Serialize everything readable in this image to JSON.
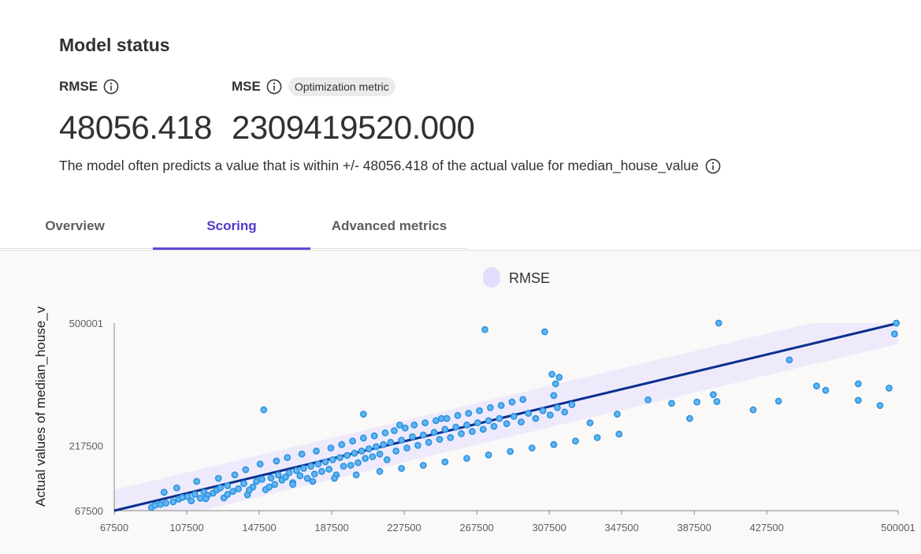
{
  "status": {
    "title": "Model status",
    "rmse": {
      "name": "RMSE",
      "value": "48056.418"
    },
    "mse": {
      "name": "MSE",
      "badge": "Optimization metric",
      "value": "2309419520.000"
    },
    "description": "The model often predicts a value that is within +/- 48056.418 of the actual value for median_house_value"
  },
  "tabs": [
    {
      "label": "Overview",
      "selected": false
    },
    {
      "label": "Scoring",
      "selected": true
    },
    {
      "label": "Advanced metrics",
      "selected": false
    }
  ],
  "icons": {
    "info": "info-icon"
  },
  "colors": {
    "accent": "#5b4ad6",
    "point": "#2b93df",
    "line": "#0b2f8f",
    "band": "#ece8fb"
  },
  "chart_data": {
    "type": "scatter",
    "legend": [
      "RMSE"
    ],
    "legend_position": "top-center",
    "ylabel": "Actual values of median_house_v",
    "xlabel": "",
    "xlim": [
      67500,
      500001
    ],
    "ylim": [
      67500,
      500001
    ],
    "x_ticks": [
      "67500",
      "107500",
      "147500",
      "187500",
      "227500",
      "267500",
      "307500",
      "347500",
      "387500",
      "427500",
      "500001"
    ],
    "y_ticks": [
      "67500",
      "217500",
      "500001"
    ],
    "ideal_line": [
      [
        67500,
        67500
      ],
      [
        500001,
        500001
      ]
    ],
    "rmse_band": 48056.418,
    "points": [
      [
        88000,
        75000
      ],
      [
        90000,
        80000
      ],
      [
        93000,
        82000
      ],
      [
        96000,
        85000
      ],
      [
        100000,
        88000
      ],
      [
        103000,
        94000
      ],
      [
        105000,
        98000
      ],
      [
        108000,
        100000
      ],
      [
        110000,
        90000
      ],
      [
        112000,
        105000
      ],
      [
        115000,
        96000
      ],
      [
        117000,
        110000
      ],
      [
        119000,
        103000
      ],
      [
        122000,
        108000
      ],
      [
        124000,
        115000
      ],
      [
        126000,
        120000
      ],
      [
        128000,
        97000
      ],
      [
        130000,
        125000
      ],
      [
        133000,
        112000
      ],
      [
        136000,
        118000
      ],
      [
        139000,
        130000
      ],
      [
        141000,
        104000
      ],
      [
        144000,
        122000
      ],
      [
        146000,
        135000
      ],
      [
        149000,
        140000
      ],
      [
        151000,
        116000
      ],
      [
        154000,
        143000
      ],
      [
        156000,
        128000
      ],
      [
        158000,
        150000
      ],
      [
        160000,
        138000
      ],
      [
        162000,
        145000
      ],
      [
        164000,
        155000
      ],
      [
        166000,
        132000
      ],
      [
        168000,
        160000
      ],
      [
        170000,
        148000
      ],
      [
        172000,
        165000
      ],
      [
        174000,
        142000
      ],
      [
        176000,
        170000
      ],
      [
        178000,
        152000
      ],
      [
        180000,
        175000
      ],
      [
        182000,
        158000
      ],
      [
        184000,
        180000
      ],
      [
        186000,
        163000
      ],
      [
        188000,
        185000
      ],
      [
        190000,
        150000
      ],
      [
        192000,
        190000
      ],
      [
        194000,
        170000
      ],
      [
        196000,
        195000
      ],
      [
        198000,
        172000
      ],
      [
        200000,
        200000
      ],
      [
        202000,
        178000
      ],
      [
        204000,
        205000
      ],
      [
        206000,
        188000
      ],
      [
        208000,
        210000
      ],
      [
        210000,
        192000
      ],
      [
        212000,
        215000
      ],
      [
        214000,
        198000
      ],
      [
        216000,
        220000
      ],
      [
        218000,
        185000
      ],
      [
        220000,
        225000
      ],
      [
        223000,
        205000
      ],
      [
        226000,
        230000
      ],
      [
        229000,
        212000
      ],
      [
        232000,
        238000
      ],
      [
        235000,
        218000
      ],
      [
        238000,
        242000
      ],
      [
        241000,
        225000
      ],
      [
        244000,
        248000
      ],
      [
        247000,
        232000
      ],
      [
        250000,
        255000
      ],
      [
        253000,
        236000
      ],
      [
        256000,
        260000
      ],
      [
        259000,
        245000
      ],
      [
        262000,
        265000
      ],
      [
        265000,
        250000
      ],
      [
        268000,
        270000
      ],
      [
        271000,
        255000
      ],
      [
        274000,
        275000
      ],
      [
        277000,
        262000
      ],
      [
        280000,
        280000
      ],
      [
        284000,
        268000
      ],
      [
        288000,
        285000
      ],
      [
        292000,
        272000
      ],
      [
        296000,
        292000
      ],
      [
        300000,
        280000
      ],
      [
        304000,
        298000
      ],
      [
        308000,
        288000
      ],
      [
        312000,
        305000
      ],
      [
        316000,
        295000
      ],
      [
        320000,
        312000
      ],
      [
        95000,
        110000
      ],
      [
        102000,
        120000
      ],
      [
        113000,
        135000
      ],
      [
        125000,
        142000
      ],
      [
        134000,
        150000
      ],
      [
        140000,
        162000
      ],
      [
        148000,
        175000
      ],
      [
        157000,
        182000
      ],
      [
        163000,
        190000
      ],
      [
        171000,
        198000
      ],
      [
        179000,
        205000
      ],
      [
        187000,
        212000
      ],
      [
        193000,
        220000
      ],
      [
        199000,
        228000
      ],
      [
        205000,
        235000
      ],
      [
        211000,
        240000
      ],
      [
        217000,
        247000
      ],
      [
        222000,
        252000
      ],
      [
        228000,
        258000
      ],
      [
        233000,
        265000
      ],
      [
        239000,
        270000
      ],
      [
        245000,
        275000
      ],
      [
        251000,
        280000
      ],
      [
        257000,
        287000
      ],
      [
        263000,
        292000
      ],
      [
        269000,
        298000
      ],
      [
        275000,
        305000
      ],
      [
        281000,
        310000
      ],
      [
        287000,
        318000
      ],
      [
        293000,
        324000
      ],
      [
        118000,
        95000
      ],
      [
        130000,
        105000
      ],
      [
        142000,
        115000
      ],
      [
        153000,
        122000
      ],
      [
        166000,
        128000
      ],
      [
        177000,
        135000
      ],
      [
        189000,
        142000
      ],
      [
        201000,
        150000
      ],
      [
        214000,
        158000
      ],
      [
        226000,
        165000
      ],
      [
        238000,
        172000
      ],
      [
        250000,
        180000
      ],
      [
        262000,
        188000
      ],
      [
        274000,
        196000
      ],
      [
        286000,
        204000
      ],
      [
        298000,
        212000
      ],
      [
        310000,
        220000
      ],
      [
        322000,
        228000
      ],
      [
        334000,
        236000
      ],
      [
        346000,
        244000
      ],
      [
        150000,
        300000
      ],
      [
        205000,
        290000
      ],
      [
        225000,
        265000
      ],
      [
        248000,
        280000
      ],
      [
        272000,
        485000
      ],
      [
        305000,
        480000
      ],
      [
        309000,
        382000
      ],
      [
        313000,
        375000
      ],
      [
        311000,
        360000
      ],
      [
        310000,
        333000
      ],
      [
        330000,
        270000
      ],
      [
        345000,
        290000
      ],
      [
        362000,
        323000
      ],
      [
        375000,
        315000
      ],
      [
        389000,
        318000
      ],
      [
        398000,
        335000
      ],
      [
        400000,
        319000
      ],
      [
        401000,
        500001
      ],
      [
        420000,
        300000
      ],
      [
        434000,
        320000
      ],
      [
        440000,
        415000
      ],
      [
        460000,
        345000
      ],
      [
        478000,
        322000
      ],
      [
        490000,
        310000
      ],
      [
        495000,
        350000
      ],
      [
        498000,
        475000
      ],
      [
        499000,
        500001
      ],
      [
        478000,
        360000
      ],
      [
        455000,
        355000
      ],
      [
        385000,
        280000
      ]
    ]
  }
}
